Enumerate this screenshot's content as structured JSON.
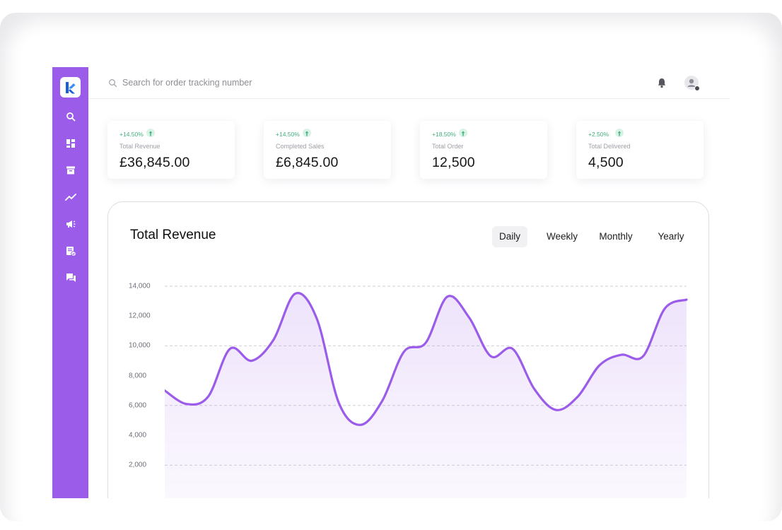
{
  "search": {
    "placeholder": "Search for order tracking number"
  },
  "stats": [
    {
      "change": "+14.50%",
      "label": "Total Revenue",
      "value": "£36,845.00"
    },
    {
      "change": "+14.50%",
      "label": "Completed Sales",
      "value": "£6,845.00"
    },
    {
      "change": "+18.50%",
      "label": "Total Order",
      "value": "12,500"
    },
    {
      "change": "+2.50%",
      "label": "Total Delivered",
      "value": "4,500"
    }
  ],
  "chart": {
    "title": "Total Revenue",
    "tabs": [
      "Daily",
      "Weekly",
      "Monthly",
      "Yearly"
    ],
    "active_tab": "Daily"
  },
  "colors": {
    "sidebar": "#9b5cea",
    "line": "#9b5cea",
    "positive": "#3fae79"
  },
  "sidebar_icons": [
    "search-icon",
    "dashboard-icon",
    "archive-icon",
    "trend-icon",
    "megaphone-icon",
    "report-icon",
    "chat-icon"
  ],
  "chart_data": {
    "type": "area",
    "title": "Total Revenue",
    "xlabel": "",
    "ylabel": "",
    "yticks": [
      "2,000",
      "4,000",
      "6,000",
      "8,000",
      "10,000",
      "12,000",
      "14,000"
    ],
    "ytick_values": [
      2000,
      4000,
      6000,
      8000,
      10000,
      12000,
      14000
    ],
    "ylim": [
      0,
      14000
    ],
    "grid": true,
    "series": [
      {
        "values": [
          7000,
          6100,
          6600,
          9800,
          9000,
          10400,
          13500,
          11800,
          6200,
          4700,
          6300,
          9600,
          10200,
          13300,
          11900,
          9300,
          9800,
          7100,
          5700,
          6600,
          8700,
          9400,
          9300,
          12500,
          13100
        ]
      }
    ]
  }
}
